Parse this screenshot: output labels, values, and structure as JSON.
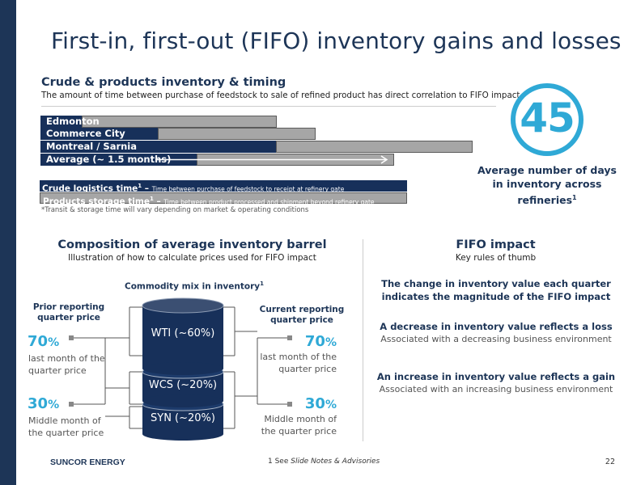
{
  "title": "First-in, first-out (FIFO) inventory gains and losses",
  "timing": {
    "heading": "Crude & products inventory & timing",
    "subheading": "The amount of time between purchase of feedstock to sale of refined product has direct correlation to FIFO impact",
    "rows": [
      {
        "label": "Edmonton"
      },
      {
        "label": "Commerce City"
      },
      {
        "label": "Montreal / Sarnia"
      },
      {
        "label": "Average (~ 1.5 months)"
      }
    ],
    "legend": {
      "crude_title": "Crude logistics time",
      "crude_sup": "1",
      "crude_dash": " – ",
      "crude_desc": "Time between purchase of feedstock to receipt at refinery gate",
      "products_title": "Products storage time",
      "products_sup": "1",
      "products_dash": " – ",
      "products_desc": "Time between product processed and shipment beyond refinery gate"
    },
    "footnote": "*Transit & storage time will vary depending on market & operating conditions"
  },
  "days_badge": {
    "value": "45",
    "caption_line1": "Average number of days",
    "caption_line2": "in inventory across",
    "caption_line3": "refineries",
    "caption_sup": "1"
  },
  "composition": {
    "heading": "Composition of average inventory barrel",
    "subheading": "Illustration of how to calculate prices used for FIFO impact",
    "mix_title": "Commodity mix in inventory",
    "mix_sup": "1",
    "prior_title_1": "Prior reporting",
    "prior_title_2": "quarter price",
    "current_title_1": "Current reporting",
    "current_title_2": "quarter price",
    "segments": [
      {
        "label": "WTI (~60%)"
      },
      {
        "label": "WCS (~20%)"
      },
      {
        "label": "SYN (~20%)"
      }
    ],
    "prior": [
      {
        "pct": "70",
        "pct_sign": "%",
        "line1": "last month of the",
        "line2": "quarter price"
      },
      {
        "pct": "30",
        "pct_sign": "%",
        "line1": "Middle month of",
        "line2": "the quarter price"
      }
    ],
    "current": [
      {
        "pct": "70",
        "pct_sign": "%",
        "line1": "last month of the",
        "line2": "quarter price"
      },
      {
        "pct": "30",
        "pct_sign": "%",
        "line1": "Middle month of",
        "line2": "the quarter price"
      }
    ]
  },
  "fifo": {
    "heading": "FIFO impact",
    "subheading": "Key rules of thumb",
    "rules": [
      {
        "bold_1": "The change in inventory value each quarter",
        "bold_2": "indicates the magnitude of the FIFO impact",
        "sub": ""
      },
      {
        "bold_1": "A decrease in inventory value reflects a loss",
        "bold_2": "",
        "sub": "Associated with a decreasing business environment"
      },
      {
        "bold_1": "An increase in inventory value reflects a gain",
        "bold_2": "",
        "sub": "Associated with an increasing business environment"
      }
    ]
  },
  "footer": {
    "brand": "SUNCOR ENERGY",
    "note_prefix": "1 See ",
    "note_italic": "Slide Notes & Advisories",
    "page": "22"
  },
  "colors": {
    "navy": "#17305a",
    "accent_blue": "#2fa9d6",
    "grey_bar": "#a6a6a6"
  }
}
